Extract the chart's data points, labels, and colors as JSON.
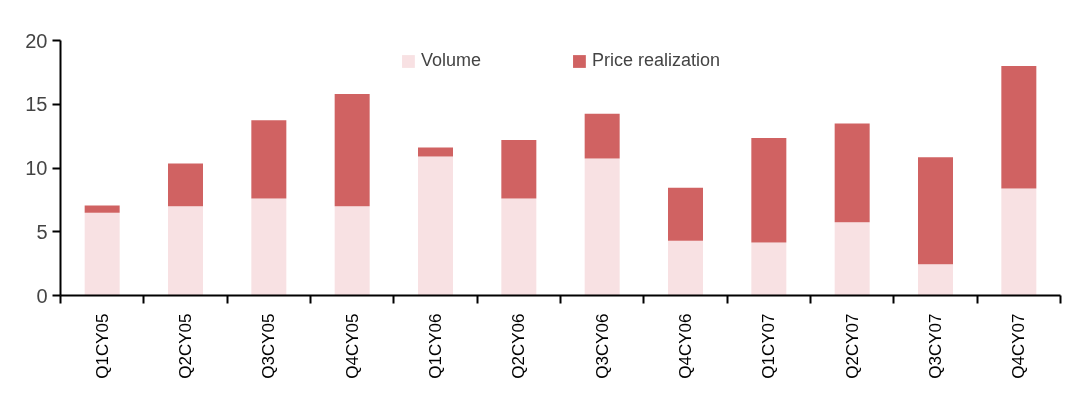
{
  "chart_data": {
    "type": "bar",
    "stacked": true,
    "categories": [
      "Q1CY05",
      "Q2CY05",
      "Q3CY05",
      "Q4CY05",
      "Q1CY06",
      "Q2CY06",
      "Q3CY06",
      "Q4CY06",
      "Q1CY07",
      "Q2CY07",
      "Q3CY07",
      "Q4CY07"
    ],
    "series": [
      {
        "name": "Volume",
        "color": "#f8e1e3",
        "values": [
          6.5,
          7.0,
          7.6,
          7.0,
          10.9,
          7.6,
          10.75,
          4.3,
          4.15,
          5.75,
          2.45,
          8.4
        ]
      },
      {
        "name": "Price realization",
        "color": "#d06262",
        "values": [
          0.55,
          3.35,
          6.15,
          8.8,
          0.7,
          4.6,
          3.5,
          4.15,
          8.2,
          7.75,
          8.4,
          9.6
        ]
      }
    ],
    "ylim": [
      0,
      20
    ],
    "yticks": [
      0,
      5,
      10,
      15,
      20
    ],
    "grid": false,
    "legend": "top"
  }
}
